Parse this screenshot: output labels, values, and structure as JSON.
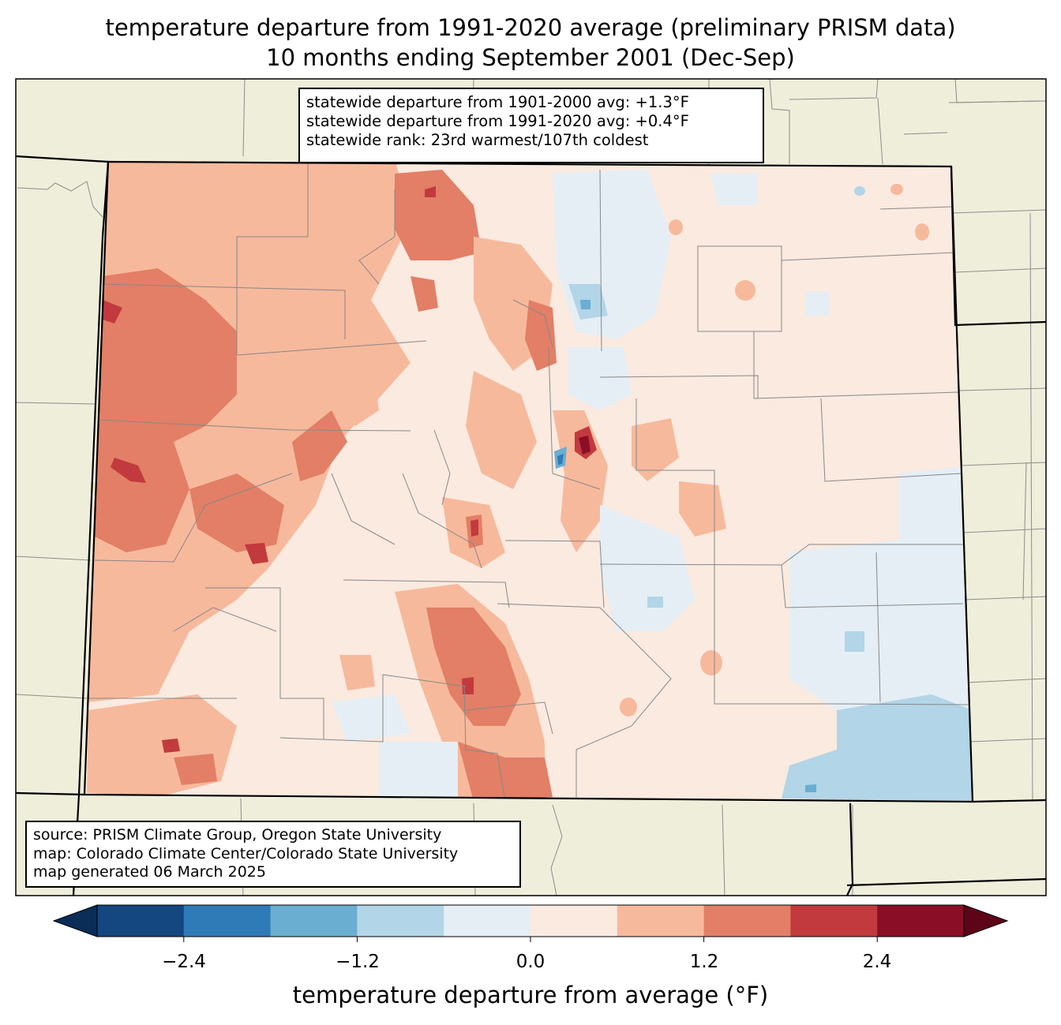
{
  "title": {
    "line1": "temperature departure from 1991-2020 average (preliminary PRISM data)",
    "line2": "10 months ending September 2001 (Dec-Sep)"
  },
  "stats": {
    "line1": "statewide departure from 1901-2000 avg: +1.3°F",
    "line2": "statewide departure from 1991-2020 avg: +0.4°F",
    "line3": "statewide rank: 23rd warmest/107th coldest"
  },
  "credits": {
    "line1": "source: PRISM Climate Group, Oregon State University",
    "line2": "map: Colorado Climate Center/Colorado State University",
    "line3": "map generated 06 March 2025"
  },
  "colorbar": {
    "label": "temperature departure from average (°F)",
    "ticks": [
      "−2.4",
      "−1.2",
      "0.0",
      "1.2",
      "2.4"
    ],
    "bins": [
      -3.0,
      -2.4,
      -1.8,
      -1.2,
      -0.6,
      0.0,
      0.6,
      1.2,
      1.8,
      2.4,
      3.0
    ],
    "colors": [
      "#14467f",
      "#2f7bb7",
      "#6aaed2",
      "#b2d5e7",
      "#e5eef5",
      "#faeae0",
      "#f7b99c",
      "#e27f66",
      "#c23a3d",
      "#8a0f26"
    ],
    "under_color": "#0a2d57",
    "over_color": "#5e0418"
  },
  "colors": {
    "background": "#efeedb",
    "state_border": "#000000",
    "county_border": "#888888"
  }
}
